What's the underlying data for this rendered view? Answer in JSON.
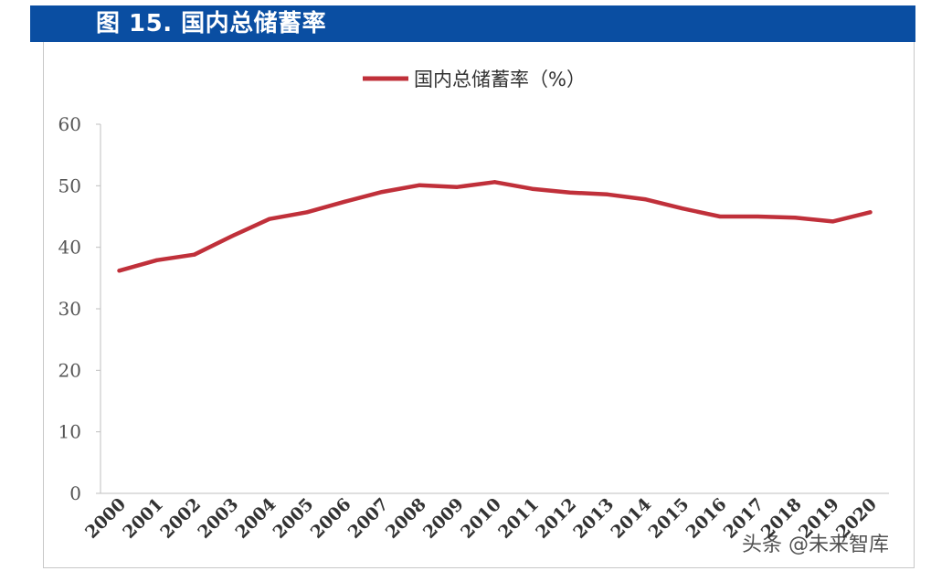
{
  "header": {
    "title": "图 15. 国内总储蓄率"
  },
  "chart_data": {
    "type": "line",
    "title": "",
    "xlabel": "",
    "ylabel": "",
    "categories": [
      "2000",
      "2001",
      "2002",
      "2003",
      "2004",
      "2005",
      "2006",
      "2007",
      "2008",
      "2009",
      "2010",
      "2011",
      "2012",
      "2013",
      "2014",
      "2015",
      "2016",
      "2017",
      "2018",
      "2019",
      "2020"
    ],
    "series": [
      {
        "name": "国内总储蓄率（%）",
        "color": "#c0303a",
        "values": [
          36.2,
          37.9,
          38.8,
          41.8,
          44.6,
          45.7,
          47.4,
          49.0,
          50.1,
          49.8,
          50.6,
          49.5,
          48.9,
          48.6,
          47.8,
          46.3,
          45.0,
          45.0,
          44.8,
          44.2,
          45.7
        ]
      }
    ],
    "ylim": [
      0,
      60
    ],
    "yticks": [
      0,
      10,
      20,
      30,
      40,
      50,
      60
    ],
    "grid": false,
    "legend_position": "top-center"
  },
  "watermark": {
    "text": "头条 @未来智库"
  }
}
